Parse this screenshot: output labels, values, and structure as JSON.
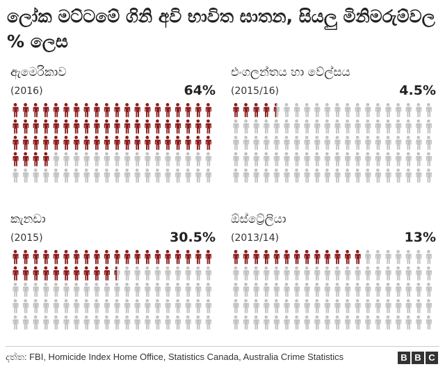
{
  "title": "ලෝක මට්ටමේ ගිනි අවි භාවිත ඝාතන, සියලු මිනිමරුම්වල % ලෙස",
  "colors": {
    "highlight": "#8b1c1c",
    "base": "#c2c2c2"
  },
  "icon_name": "person-icon",
  "chart_data": [
    {
      "type": "pictograph",
      "country": "ඇමෙරිකාව",
      "year": "(2016)",
      "percent_label": "64%",
      "value": 64,
      "total": 100
    },
    {
      "type": "pictograph",
      "country": "එංගලන්තය හා වේල්සය",
      "year": "(2015/16)",
      "percent_label": "4.5%",
      "value": 4.5,
      "total": 100
    },
    {
      "type": "pictograph",
      "country": "කැනඩා",
      "year": "(2015)",
      "percent_label": "30.5%",
      "value": 30.5,
      "total": 100
    },
    {
      "type": "pictograph",
      "country": "ඕස්ට්‍රේලියා",
      "year": "(2013/14)",
      "percent_label": "13%",
      "value": 13,
      "total": 100
    }
  ],
  "footer": {
    "source": "දත්ත: FBI, Homicide Index Home Office, Statistics Canada, Australia Crime Statistics",
    "logo": [
      "B",
      "B",
      "C"
    ]
  }
}
